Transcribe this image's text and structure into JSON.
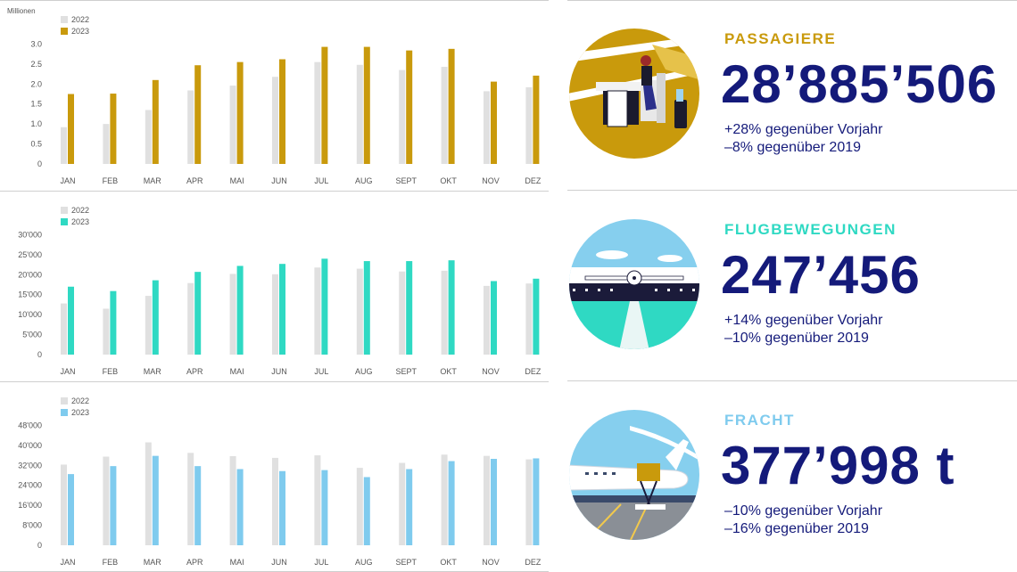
{
  "chart_data": [
    {
      "type": "bar",
      "unit_label": "Millionen",
      "categories": [
        "JAN",
        "FEB",
        "MAR",
        "APR",
        "MAI",
        "JUN",
        "JUL",
        "AUG",
        "SEPT",
        "OKT",
        "NOV",
        "DEZ"
      ],
      "yticks": [
        "0",
        "0.5",
        "1.0",
        "1.5",
        "2.0",
        "2.5",
        "3.0"
      ],
      "ylim": [
        0,
        3.3
      ],
      "series": [
        {
          "name": "2022",
          "values": [
            0.92,
            1.0,
            1.35,
            1.84,
            1.96,
            2.18,
            2.55,
            2.48,
            2.35,
            2.43,
            1.82,
            1.92
          ]
        },
        {
          "name": "2023",
          "values": [
            1.75,
            1.76,
            2.1,
            2.47,
            2.55,
            2.62,
            2.93,
            2.93,
            2.84,
            2.88,
            2.06,
            2.21
          ]
        }
      ],
      "grid": false,
      "legend": "top-left"
    },
    {
      "type": "bar",
      "categories": [
        "JAN",
        "FEB",
        "MAR",
        "APR",
        "MAI",
        "JUN",
        "JUL",
        "AUG",
        "SEPT",
        "OKT",
        "NOV",
        "DEZ"
      ],
      "yticks": [
        "0",
        "5'000",
        "10'000",
        "15'000",
        "20'000",
        "25'000",
        "30'000"
      ],
      "ylim": [
        0,
        33000
      ],
      "series": [
        {
          "name": "2022",
          "values": [
            12800,
            11500,
            14700,
            17900,
            20200,
            20100,
            21800,
            21500,
            20800,
            21000,
            17200,
            17800
          ]
        },
        {
          "name": "2023",
          "values": [
            17000,
            15900,
            18600,
            20700,
            22200,
            22700,
            24000,
            23400,
            23400,
            23600,
            18400,
            19000
          ]
        }
      ],
      "grid": false,
      "legend": "top-left"
    },
    {
      "type": "bar",
      "categories": [
        "JAN",
        "FEB",
        "MAR",
        "APR",
        "MAI",
        "JUN",
        "JUL",
        "AUG",
        "SEPT",
        "OKT",
        "NOV",
        "DEZ"
      ],
      "yticks": [
        "0",
        "8'000",
        "16'000",
        "24'000",
        "32'000",
        "40'000",
        "48'000"
      ],
      "ylim": [
        0,
        52800
      ],
      "series": [
        {
          "name": "2022",
          "values": [
            32300,
            35500,
            41200,
            37000,
            35700,
            35000,
            36000,
            31000,
            33000,
            36300,
            35800,
            34400
          ]
        },
        {
          "name": "2023",
          "values": [
            28500,
            31700,
            35800,
            31700,
            30500,
            29700,
            30100,
            27300,
            30500,
            33700,
            34600,
            34800
          ]
        }
      ],
      "grid": false,
      "legend": "top-left"
    }
  ],
  "stats": [
    {
      "title": "PASSAGIERE",
      "value": "28’885’506",
      "line1": "+28% gegenüber Vorjahr",
      "line2": "–8% gegenüber 2019"
    },
    {
      "title": "FLUGBEWEGUNGEN",
      "value": "247’456",
      "line1": "+14% gegenüber Vorjahr",
      "line2": "–10% gegenüber 2019"
    },
    {
      "title": "FRACHT",
      "value": "377’998 t",
      "line1": "–10% gegenüber Vorjahr",
      "line2": "–16% gegenüber 2019"
    }
  ],
  "colors": {
    "bar2022": "#e0e0e0",
    "accents": [
      "#c99a0c",
      "#2fd9c3",
      "#7fcbee"
    ],
    "value": "#141a7a"
  },
  "illustrations": [
    "passenger-lounge-illustration",
    "runway-airplane-illustration",
    "cargo-loading-illustration"
  ]
}
